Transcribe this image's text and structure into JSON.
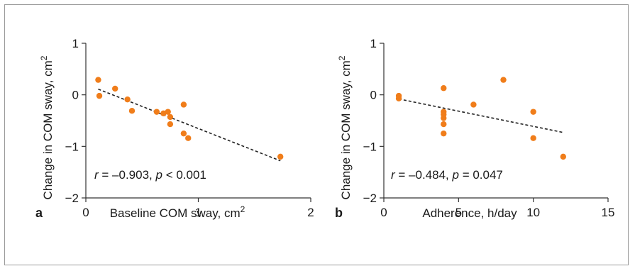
{
  "chart_data": [
    {
      "type": "scatter",
      "panel": "a",
      "xlabel": "Baseline COM sway, cm",
      "xlabel_sup": "2",
      "ylabel": "Change in COM sway, cm",
      "ylabel_sup": "2",
      "xlim": [
        0,
        2
      ],
      "ylim": [
        -2,
        1
      ],
      "xticks": [
        0,
        1,
        2
      ],
      "xtick_labels": [
        "0",
        "1",
        "2"
      ],
      "yticks": [
        1,
        0,
        -1,
        -2
      ],
      "ytick_labels": [
        "1",
        "0",
        "−1",
        "−2"
      ],
      "points": [
        {
          "x": 0.11,
          "y": 0.29
        },
        {
          "x": 0.12,
          "y": -0.02
        },
        {
          "x": 0.26,
          "y": 0.12
        },
        {
          "x": 0.37,
          "y": -0.09
        },
        {
          "x": 0.41,
          "y": -0.31
        },
        {
          "x": 0.63,
          "y": -0.33
        },
        {
          "x": 0.69,
          "y": -0.36
        },
        {
          "x": 0.73,
          "y": -0.33
        },
        {
          "x": 0.75,
          "y": -0.43
        },
        {
          "x": 0.75,
          "y": -0.57
        },
        {
          "x": 0.87,
          "y": -0.19
        },
        {
          "x": 0.87,
          "y": -0.75
        },
        {
          "x": 0.91,
          "y": -0.84
        },
        {
          "x": 1.73,
          "y": -1.2
        }
      ],
      "trendline": {
        "x1": 0.11,
        "y1": 0.11,
        "x2": 1.73,
        "y2": -1.28,
        "style": "dashed"
      },
      "annotation": {
        "r_label": "r",
        "r_value": " = –0.903, ",
        "p_label": "p",
        "p_value": " < 0.001"
      },
      "grid": false,
      "marker_color": "#f07d1a"
    },
    {
      "type": "scatter",
      "panel": "b",
      "xlabel": "Adherence, h/day",
      "xlabel_sup": "",
      "ylabel": "Change in COM sway, cm",
      "ylabel_sup": "2",
      "xlim": [
        0,
        15
      ],
      "ylim": [
        -2,
        1
      ],
      "xticks": [
        0,
        5,
        10,
        15
      ],
      "xtick_labels": [
        "0",
        "5",
        "10",
        "15"
      ],
      "yticks": [
        1,
        0,
        -1,
        -2
      ],
      "ytick_labels": [
        "1",
        "0",
        "−1",
        "−2"
      ],
      "points": [
        {
          "x": 1,
          "y": -0.02
        },
        {
          "x": 1,
          "y": -0.07
        },
        {
          "x": 4,
          "y": 0.13
        },
        {
          "x": 4,
          "y": -0.33
        },
        {
          "x": 4,
          "y": -0.38
        },
        {
          "x": 4,
          "y": -0.45
        },
        {
          "x": 4,
          "y": -0.57
        },
        {
          "x": 4,
          "y": -0.75
        },
        {
          "x": 6,
          "y": -0.19
        },
        {
          "x": 8,
          "y": 0.29
        },
        {
          "x": 10,
          "y": -0.33
        },
        {
          "x": 10,
          "y": -0.84
        },
        {
          "x": 12,
          "y": -1.2
        }
      ],
      "trendline": {
        "x1": 1,
        "y1": -0.08,
        "x2": 12,
        "y2": -0.73,
        "style": "dashed"
      },
      "annotation": {
        "r_label": "r",
        "r_value": " = –0.484, ",
        "p_label": "p",
        "p_value": " = 0.047"
      },
      "grid": false,
      "marker_color": "#f07d1a"
    }
  ]
}
